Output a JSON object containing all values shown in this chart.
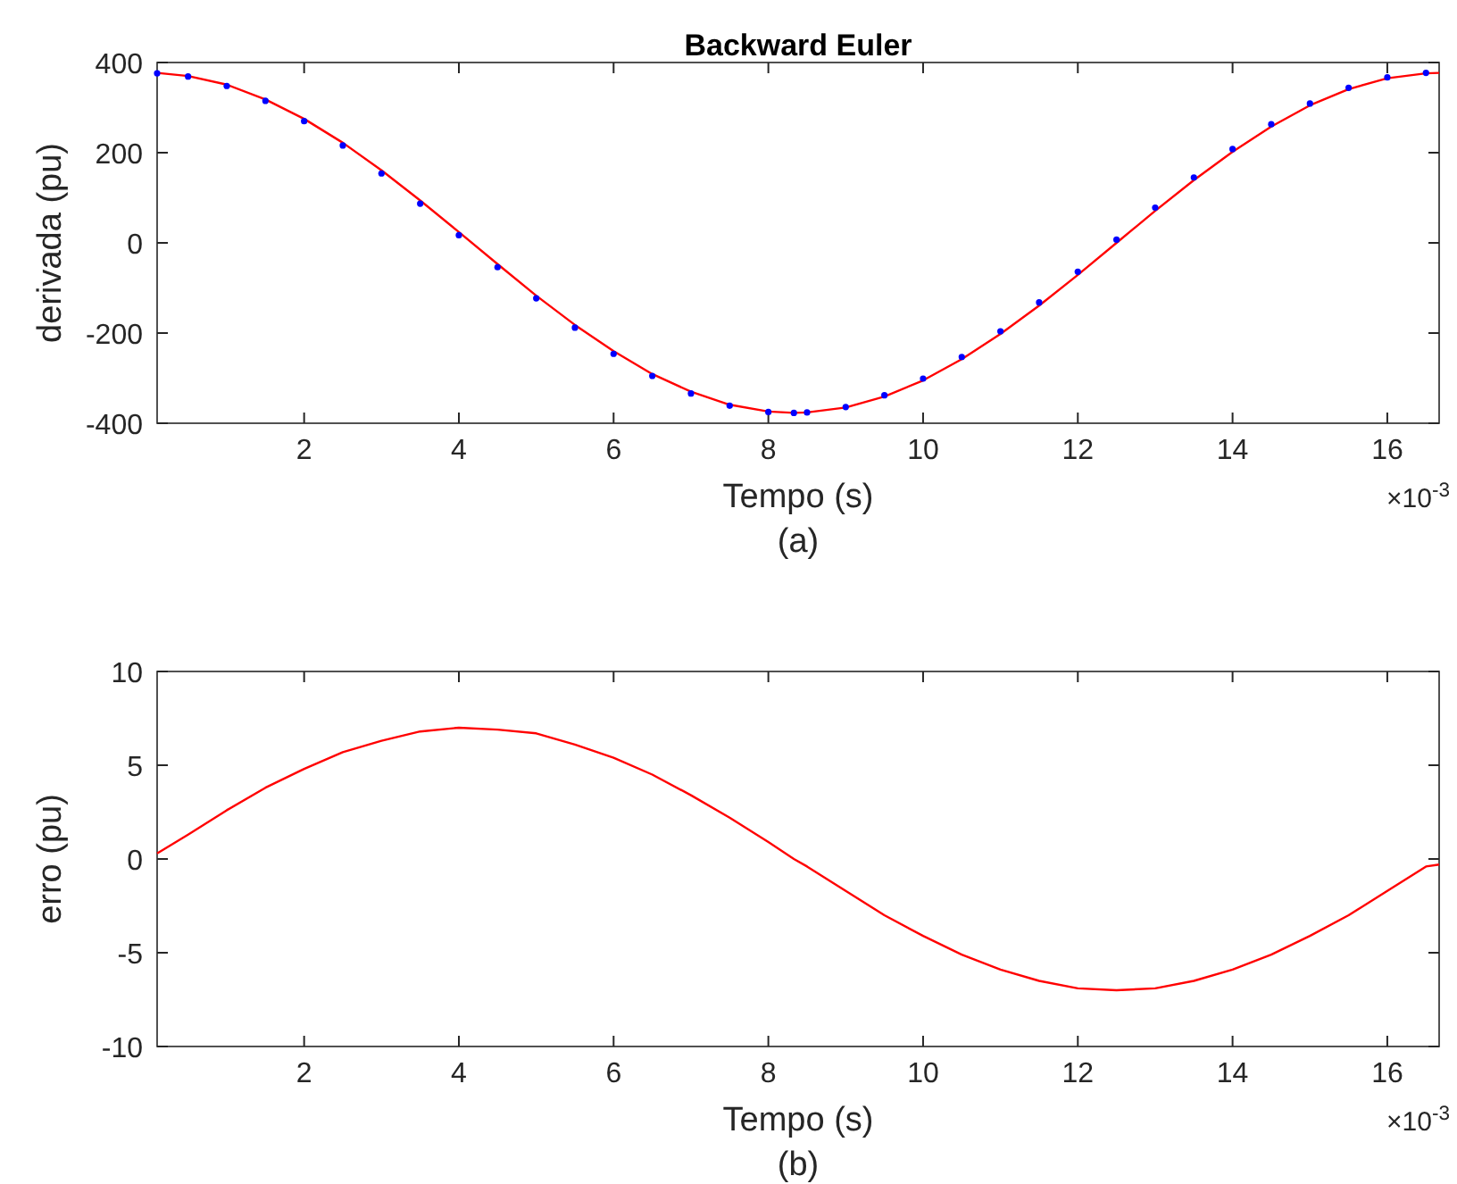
{
  "chart_data": [
    {
      "type": "line",
      "title": "Backward Euler",
      "xlabel": "Tempo (s)",
      "ylabel": "derivada (pu)",
      "annotations": [
        "×10$^{-3}$",
        "(a)"
      ],
      "x": [
        0.1,
        0.5,
        1,
        1.5,
        2,
        2.5,
        3,
        3.5,
        4,
        4.5,
        5,
        5.5,
        6,
        6.5,
        7,
        7.5,
        8,
        8.33,
        8.5,
        9,
        9.5,
        10,
        10.5,
        11,
        11.5,
        12,
        12.5,
        13,
        13.5,
        14,
        14.5,
        15,
        15.5,
        16,
        16.5,
        16.67
      ],
      "series": [
        {
          "type": "line",
          "color": "#ff0000",
          "values": [
            377,
            370,
            351,
            318,
            275,
            222,
            161,
            94,
            24,
            -47,
            -117,
            -182,
            -240,
            -291,
            -330,
            -359,
            -374,
            -377,
            -376,
            -365,
            -341,
            -305,
            -258,
            -202,
            -139,
            -71,
            0,
            71,
            139,
            202,
            258,
            305,
            341,
            365,
            376,
            377
          ]
        },
        {
          "type": "scatter",
          "color": "#0000ff",
          "marker": "circle",
          "x": [
            0.1,
            0.5,
            1,
            1.5,
            2,
            2.5,
            3,
            3.5,
            4,
            4.5,
            5,
            5.5,
            6,
            6.5,
            7,
            7.5,
            8,
            8.33,
            8.5,
            9,
            9.5,
            10,
            10.5,
            11,
            11.5,
            12,
            12.5,
            13,
            13.5,
            14,
            14.5,
            15,
            15.5,
            16,
            16.5
          ],
          "values": [
            376,
            369,
            348,
            315,
            270,
            216,
            154,
            87,
            17,
            -54,
            -123,
            -188,
            -246,
            -295,
            -334,
            -361,
            -375,
            -377,
            -376,
            -364,
            -338,
            -301,
            -253,
            -196,
            -132,
            -64,
            7,
            78,
            145,
            208,
            263,
            309,
            344,
            367,
            377
          ]
        }
      ],
      "xlim": [
        0.1,
        16.67
      ],
      "xticks": [
        2,
        4,
        6,
        8,
        10,
        12,
        14,
        16
      ],
      "ylim": [
        -400,
        400
      ],
      "yticks": [
        -400,
        -200,
        0,
        200,
        400
      ],
      "grid": false
    },
    {
      "type": "line",
      "xlabel": "Tempo (s)",
      "ylabel": "erro (pu)",
      "annotations": [
        "×10$^{-3}$",
        "(b)"
      ],
      "x": [
        0.1,
        0.5,
        1,
        1.5,
        2,
        2.5,
        3,
        3.5,
        4,
        4.5,
        5,
        5.5,
        6,
        6.5,
        7,
        7.5,
        8,
        8.33,
        8.5,
        9,
        9.5,
        10,
        10.5,
        11,
        11.5,
        12,
        12.5,
        13,
        13.5,
        14,
        14.5,
        15,
        15.5,
        16,
        16.5,
        16.67
      ],
      "series": [
        {
          "type": "line",
          "color": "#ff0000",
          "values": [
            0.3,
            1.3,
            2.6,
            3.8,
            4.8,
            5.7,
            6.3,
            6.8,
            7.0,
            6.9,
            6.7,
            6.1,
            5.4,
            4.5,
            3.4,
            2.2,
            0.9,
            0,
            -0.4,
            -1.7,
            -3.0,
            -4.1,
            -5.1,
            -5.9,
            -6.5,
            -6.9,
            -7.0,
            -6.9,
            -6.5,
            -5.9,
            -5.1,
            -4.1,
            -3.0,
            -1.7,
            -0.4,
            -0.3
          ]
        }
      ],
      "xlim": [
        0.1,
        16.67
      ],
      "xticks": [
        2,
        4,
        6,
        8,
        10,
        12,
        14,
        16
      ],
      "ylim": [
        -10,
        10
      ],
      "yticks": [
        -10,
        -5,
        0,
        5,
        10
      ],
      "grid": false
    }
  ]
}
